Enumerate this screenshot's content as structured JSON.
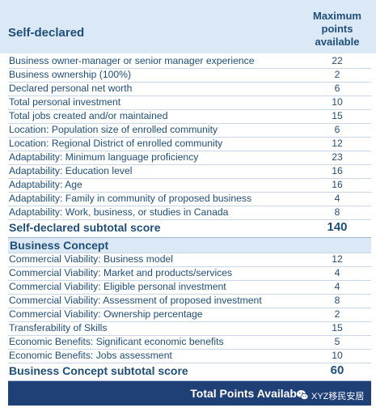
{
  "header": {
    "title": "Self-declared",
    "max_col": [
      "Maximum",
      "points",
      "available"
    ]
  },
  "self_declared": {
    "rows": [
      {
        "label": "Business owner-manager or senior manager experience",
        "points": "22"
      },
      {
        "label": "Business ownership (100%)",
        "points": "2"
      },
      {
        "label": "Declared personal net worth",
        "points": "6"
      },
      {
        "label": "Total personal investment",
        "points": "10"
      },
      {
        "label": "Total jobs created and/or maintained",
        "points": "15"
      },
      {
        "label": "Location: Population size of enrolled community",
        "points": "6"
      },
      {
        "label": "Location: Regional District of enrolled community",
        "points": "12"
      },
      {
        "label": "Adaptability: Minimum language proficiency",
        "points": "23"
      },
      {
        "label": "Adaptability: Education level",
        "points": "16"
      },
      {
        "label": "Adaptability: Age",
        "points": "16"
      },
      {
        "label": "Adaptability: Family in community of proposed business",
        "points": "4"
      },
      {
        "label": "Adaptability: Work, business, or studies in Canada",
        "points": "8"
      }
    ],
    "subtotal_label": "Self-declared subtotal score",
    "subtotal_points": "140"
  },
  "business_concept": {
    "title": "Business Concept",
    "rows": [
      {
        "label": "Commercial Viability: Business model",
        "points": "12"
      },
      {
        "label": "Commercial Viability: Market and products/services",
        "points": "4"
      },
      {
        "label": "Commercial Viability: Eligible personal investment",
        "points": "4"
      },
      {
        "label": "Commercial Viability: Assessment of proposed investment",
        "points": "8"
      },
      {
        "label": "Commercial Viability: Ownership percentage",
        "points": "2"
      },
      {
        "label": "Transferability of Skills",
        "points": "15"
      },
      {
        "label": "Economic Benefits: Significant economic benefits",
        "points": "5"
      },
      {
        "label": "Economic Benefits: Jobs assessment",
        "points": "10"
      }
    ],
    "subtotal_label": "Business Concept subtotal score",
    "subtotal_points": "60"
  },
  "total": {
    "label": "Total Points Availab"
  },
  "watermark": {
    "icon": "wechat-icon",
    "text": "XYZ移民安居"
  }
}
